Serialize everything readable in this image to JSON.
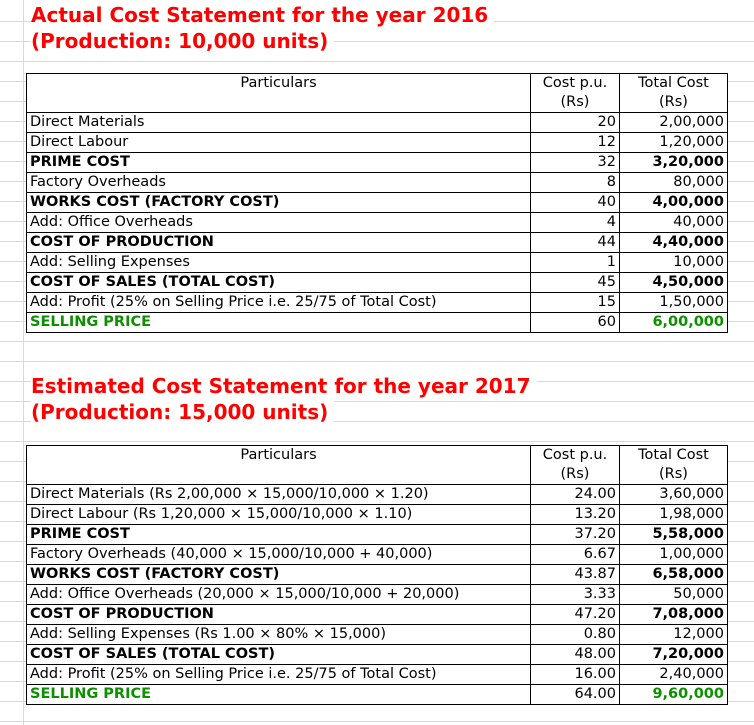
{
  "actual": {
    "title_line1": "Actual Cost Statement for the year 2016",
    "title_line2": "(Production: 10,000 units)",
    "header": {
      "particulars": "Particulars",
      "cpu_line1": "Cost p.u.",
      "cpu_line2": "(Rs)",
      "total_line1": "Total Cost",
      "total_line2": "(Rs)"
    },
    "rows": [
      {
        "label": "Direct Materials",
        "cpu": "20",
        "total": "2,00,000"
      },
      {
        "label": "Direct Labour",
        "cpu": "12",
        "total": "1,20,000"
      },
      {
        "label": "PRIME COST",
        "cpu": "32",
        "total": "3,20,000"
      },
      {
        "label": "Factory Overheads",
        "cpu": "8",
        "total": "80,000"
      },
      {
        "label": "WORKS COST (FACTORY COST)",
        "cpu": "40",
        "total": "4,00,000"
      },
      {
        "label": "Add: Office Overheads",
        "cpu": "4",
        "total": "40,000"
      },
      {
        "label": "COST OF PRODUCTION",
        "cpu": "44",
        "total": "4,40,000"
      },
      {
        "label": "Add: Selling Expenses",
        "cpu": "1",
        "total": "10,000"
      },
      {
        "label": "COST OF SALES (TOTAL COST)",
        "cpu": "45",
        "total": "4,50,000"
      },
      {
        "label": "Add: Profit (25% on Selling Price i.e. 25/75 of Total Cost)",
        "cpu": "15",
        "total": "1,50,000"
      },
      {
        "label": "SELLING PRICE",
        "cpu": "60",
        "total": "6,00,000"
      }
    ]
  },
  "estimated": {
    "title_line1": "Estimated Cost Statement for the year 2017",
    "title_line2": "(Production: 15,000 units)",
    "header": {
      "particulars": "Particulars",
      "cpu_line1": "Cost p.u.",
      "cpu_line2": "(Rs)",
      "total_line1": "Total Cost",
      "total_line2": "(Rs)"
    },
    "rows": [
      {
        "label": "Direct Materials (Rs 2,00,000 × 15,000/10,000 × 1.20)",
        "cpu": "24.00",
        "total": "3,60,000"
      },
      {
        "label": "Direct Labour (Rs 1,20,000 × 15,000/10,000 × 1.10)",
        "cpu": "13.20",
        "total": "1,98,000"
      },
      {
        "label": "PRIME COST",
        "cpu": "37.20",
        "total": "5,58,000"
      },
      {
        "label": "Factory Overheads (40,000 × 15,000/10,000 + 40,000)",
        "cpu": "6.67",
        "total": "1,00,000"
      },
      {
        "label": "WORKS COST (FACTORY COST)",
        "cpu": "43.87",
        "total": "6,58,000"
      },
      {
        "label": "Add: Office Overheads (20,000 × 15,000/10,000 + 20,000)",
        "cpu": "3.33",
        "total": "50,000"
      },
      {
        "label": "COST OF PRODUCTION",
        "cpu": "47.20",
        "total": "7,08,000"
      },
      {
        "label": "Add: Selling Expenses (Rs 1.00 × 80% × 15,000)",
        "cpu": "0.80",
        "total": "12,000"
      },
      {
        "label": "COST OF SALES (TOTAL COST)",
        "cpu": "48.00",
        "total": "7,20,000"
      },
      {
        "label": "Add: Profit (25% on Selling Price i.e. 25/75 of Total Cost)",
        "cpu": "16.00",
        "total": "2,40,000"
      },
      {
        "label": "SELLING PRICE",
        "cpu": "64.00",
        "total": "9,60,000"
      }
    ]
  },
  "colors": {
    "title": "#ff0000",
    "selling_price": "#0d9000",
    "gridline": "#d9d9d9"
  }
}
